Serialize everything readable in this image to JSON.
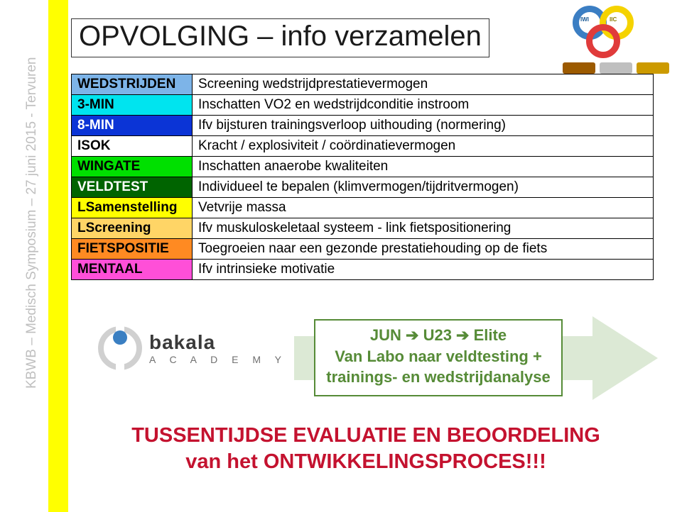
{
  "sidebar": "KBWB – Medisch Symposium – 27 juni 2015 - Tervuren",
  "title": "OPVOLGING – info verzamelen",
  "logo_ring_labels": {
    "left": "IWI",
    "right": "IIC"
  },
  "table": {
    "rows": [
      {
        "key": "WEDSTRIJDEN",
        "bg": "#7db4e8",
        "desc": "Screening wedstrijdprestatievermogen"
      },
      {
        "key": "3-MIN",
        "bg": "#00e4ef",
        "desc": "Inschatten VO2 en wedstrijdconditie instroom"
      },
      {
        "key": "8-MIN",
        "bg": "#0b34d6",
        "key_color": "#ffffff",
        "desc": "Ifv bijsturen trainingsverloop uithouding (normering)"
      },
      {
        "key": "ISOK",
        "bg": "#ffffff",
        "desc": "Kracht / explosiviteit / coördinatievermogen"
      },
      {
        "key": "WINGATE",
        "bg": "#00e000",
        "desc": "Inschatten anaerobe kwaliteiten"
      },
      {
        "key": "VELDTEST",
        "bg": "#006400",
        "key_color": "#ffffff",
        "desc": "Individueel te bepalen (klimvermogen/tijdritvermogen)"
      },
      {
        "key": "LSamenstelling",
        "bg": "#ffff00",
        "desc": "Vetvrije massa"
      },
      {
        "key": "LScreening",
        "bg": "#ffd566",
        "desc": "Ifv muskuloskeletaal systeem - link fietspositionering"
      },
      {
        "key": "FIETSPOSITIE",
        "bg": "#ff8a22",
        "desc": "Toegroeien naar een gezonde prestatiehouding op de fiets"
      },
      {
        "key": "MENTAAL",
        "bg": "#ff4fd8",
        "desc": "Ifv intrinsieke motivatie"
      }
    ]
  },
  "bakala": {
    "name": "bakala",
    "sub": "A C A D E M Y"
  },
  "prog": {
    "border_color": "#568b37",
    "text_color": "#568b37",
    "arrow_fill": "#dce9d5",
    "lines": [
      "JUN ➔ U23 ➔ Elite",
      "Van Labo naar veldtesting +",
      "trainings- en wedstrijdanalyse"
    ]
  },
  "bottom": {
    "color": "#c4122f",
    "line1": "TUSSENTIJDSE EVALUATIE EN BEOORDELING",
    "line2": "van het ONTWIKKELINGSPROCES!!!"
  }
}
